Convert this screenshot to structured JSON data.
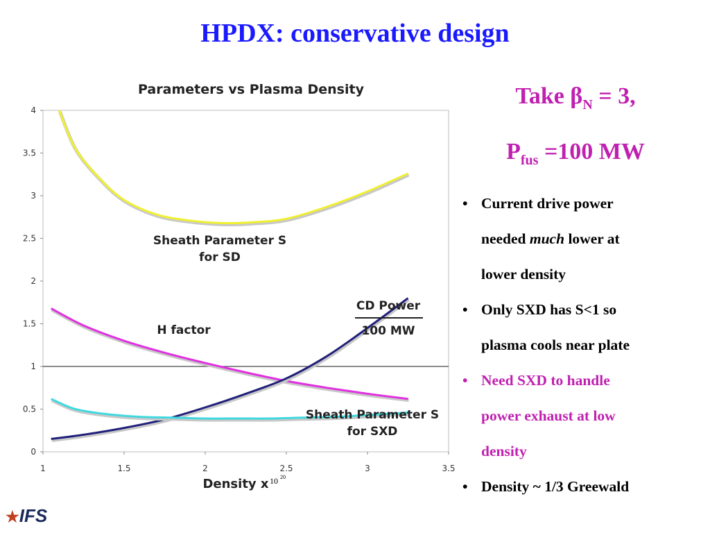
{
  "slide": {
    "title": "HPDX: conservative design",
    "take_line": {
      "prefix": "Take ",
      "beta": "β",
      "beta_sub": "N",
      "suffix": " = 3,"
    },
    "pfus_line": {
      "p": "P",
      "p_sub": "fus",
      "suffix": " =100 MW"
    },
    "bullets": [
      {
        "parts": [
          "Current drive power",
          "needed ",
          "much",
          " lower at",
          "lower density"
        ],
        "color": "black"
      },
      {
        "text_lines": [
          "Only SXD has S<1 so",
          "plasma cools near plate"
        ],
        "color": "black"
      },
      {
        "text_lines": [
          "Need SXD to handle",
          "power exhaust at low",
          "density"
        ],
        "color": "magenta"
      },
      {
        "text_lines": [
          "Density ~ 1/3 Greewald"
        ],
        "color": "black"
      }
    ],
    "logo_text": "IFS",
    "logo_icon": "star-icon",
    "bullet_glyph": "•"
  },
  "chart_data": {
    "type": "line",
    "title": "Parameters vs Plasma Density",
    "xlabel": "Density x",
    "xlabel_unit_base": "10",
    "xlabel_unit_exp": "20",
    "xlim": [
      1,
      3.5
    ],
    "ylim": [
      0,
      4
    ],
    "x_ticks": [
      "1",
      "1.5",
      "2",
      "2.5",
      "3",
      "3.5"
    ],
    "y_ticks": [
      "0",
      "0.5",
      "1",
      "1.5",
      "2",
      "2.5",
      "3",
      "3.5",
      "4"
    ],
    "reference_line_y": 1,
    "series": [
      {
        "name": "Sheath Parameter S for SD",
        "label_lines": [
          "Sheath Parameter S",
          "for SD"
        ],
        "color": "#f0f030",
        "x": [
          1.1,
          1.2,
          1.35,
          1.5,
          1.7,
          1.9,
          2.1,
          2.3,
          2.5,
          2.75,
          3.0,
          3.25
        ],
        "y": [
          4.0,
          3.55,
          3.2,
          2.95,
          2.78,
          2.71,
          2.68,
          2.69,
          2.73,
          2.87,
          3.05,
          3.26
        ]
      },
      {
        "name": "H factor",
        "label_lines": [
          "H factor"
        ],
        "color": "#e030e0",
        "x": [
          1.05,
          1.25,
          1.5,
          1.75,
          2.0,
          2.25,
          2.5,
          2.75,
          3.0,
          3.25
        ],
        "y": [
          1.68,
          1.48,
          1.3,
          1.16,
          1.04,
          0.93,
          0.83,
          0.75,
          0.68,
          0.62
        ]
      },
      {
        "name": "CD Power / 100 MW",
        "label_lines": [
          "CD Power",
          "100 MW"
        ],
        "color": "#20207a",
        "x": [
          1.05,
          1.25,
          1.5,
          1.75,
          2.0,
          2.25,
          2.5,
          2.75,
          3.0,
          3.25
        ],
        "y": [
          0.15,
          0.2,
          0.28,
          0.38,
          0.52,
          0.68,
          0.86,
          1.12,
          1.45,
          1.8
        ]
      },
      {
        "name": "Sheath Parameter S for SXD",
        "label_lines": [
          "Sheath  Parameter S",
          "for SXD"
        ],
        "color": "#40d8e0",
        "x": [
          1.05,
          1.2,
          1.4,
          1.6,
          1.8,
          2.0,
          2.2,
          2.4,
          2.6,
          2.8,
          3.0,
          3.25
        ],
        "y": [
          0.62,
          0.5,
          0.44,
          0.41,
          0.4,
          0.39,
          0.39,
          0.39,
          0.4,
          0.41,
          0.43,
          0.46
        ]
      }
    ]
  }
}
